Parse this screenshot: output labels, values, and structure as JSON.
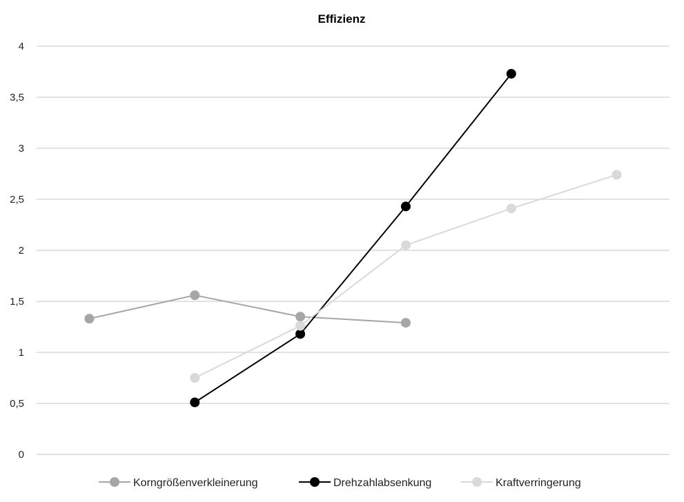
{
  "chart_data": {
    "type": "line",
    "title": "Effizienz",
    "xlabel": "",
    "ylabel": "",
    "x": [
      1,
      2,
      3,
      4,
      5,
      6
    ],
    "ylim": [
      0,
      4
    ],
    "yticks": [
      0,
      0.5,
      1,
      1.5,
      2,
      2.5,
      3,
      3.5,
      4
    ],
    "ytick_labels": [
      "0",
      "0,5",
      "1",
      "1,5",
      "2",
      "2,5",
      "3",
      "3,5",
      "4"
    ],
    "grid": true,
    "legend_position": "bottom",
    "series": [
      {
        "name": "Korngrößenverkleinerung",
        "color": "#a6a6a6",
        "values": [
          1.33,
          1.56,
          1.35,
          1.29,
          null,
          null
        ]
      },
      {
        "name": "Drehzahlabsenkung",
        "color": "#000000",
        "values": [
          null,
          0.51,
          1.18,
          2.43,
          3.73,
          null
        ]
      },
      {
        "name": "Kraftverringerung",
        "color": "#d9d9d9",
        "values": [
          null,
          0.75,
          1.26,
          2.05,
          2.41,
          2.74
        ]
      }
    ]
  }
}
